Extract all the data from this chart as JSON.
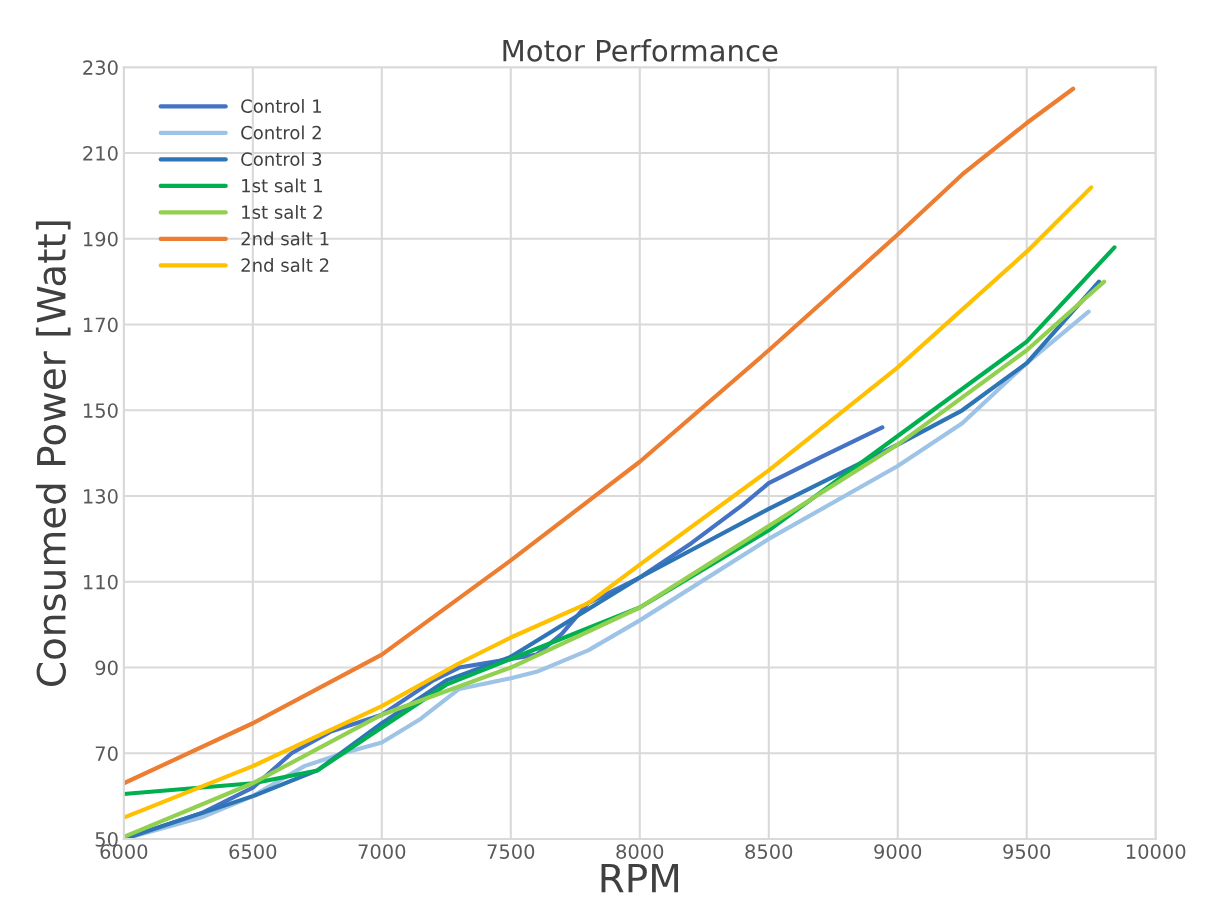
{
  "chart_data": {
    "type": "line",
    "title": "Motor Performance",
    "xlabel": "RPM",
    "ylabel": "Consumed Power [Watt]",
    "xlim": [
      6000,
      10000
    ],
    "xticks": [
      6000,
      6500,
      7000,
      7500,
      8000,
      8500,
      9000,
      9500,
      10000
    ],
    "ylim": [
      50,
      230
    ],
    "yticks": [
      50,
      70,
      90,
      110,
      130,
      150,
      170,
      190,
      210,
      230
    ],
    "grid": true,
    "legend": "top left",
    "marker": "none",
    "line_style": "solid",
    "series": [
      {
        "name": "Control 1",
        "color": "#4472c4",
        "x": [
          6000,
          6300,
          6500,
          6650,
          6800,
          7000,
          7200,
          7300,
          7450,
          7600,
          7700,
          7800,
          8000,
          8200,
          8400,
          8500,
          8700,
          8940
        ],
        "values": [
          50,
          56,
          62,
          70,
          75,
          79,
          87,
          90,
          91.5,
          93,
          98,
          105,
          111,
          119,
          128,
          133,
          139,
          146
        ]
      },
      {
        "name": "Control 2",
        "color": "#9dc3e6",
        "x": [
          6000,
          6300,
          6500,
          6700,
          6850,
          7000,
          7150,
          7300,
          7500,
          7600,
          7800,
          8000,
          8500,
          9000,
          9250,
          9500,
          9740
        ],
        "values": [
          50,
          55,
          60,
          67,
          70,
          72.5,
          78,
          85,
          87.5,
          89,
          94,
          101,
          120,
          137,
          147,
          161,
          173
        ]
      },
      {
        "name": "Control 3",
        "color": "#2e75b6",
        "x": [
          6000,
          6500,
          6750,
          7000,
          7250,
          7500,
          8000,
          8500,
          9000,
          9250,
          9500,
          9780
        ],
        "values": [
          50,
          60,
          66,
          77,
          87,
          92.5,
          111,
          127,
          142,
          150,
          161,
          180
        ]
      },
      {
        "name": "1st salt 1",
        "color": "#00b050",
        "x": [
          6000,
          6500,
          6750,
          7000,
          7250,
          7500,
          8000,
          8500,
          9000,
          9500,
          9840
        ],
        "values": [
          60.5,
          63,
          66,
          76,
          86,
          92,
          104,
          122,
          144,
          166,
          188
        ]
      },
      {
        "name": "1st salt 2",
        "color": "#92d050",
        "x": [
          6000,
          6500,
          7000,
          7500,
          8000,
          8500,
          9000,
          9500,
          9800
        ],
        "values": [
          50.5,
          63,
          79,
          90,
          104,
          123,
          142,
          164,
          180
        ]
      },
      {
        "name": "2nd salt 1",
        "color": "#ed7d31",
        "x": [
          6000,
          6500,
          7000,
          7500,
          8000,
          8500,
          9000,
          9250,
          9500,
          9680
        ],
        "values": [
          63,
          77,
          93,
          115,
          138,
          164,
          191,
          205,
          217,
          225
        ]
      },
      {
        "name": "2nd salt 2",
        "color": "#ffc000",
        "x": [
          6000,
          6500,
          7000,
          7300,
          7500,
          7800,
          8000,
          8500,
          9000,
          9500,
          9750
        ],
        "values": [
          55,
          67,
          81,
          91,
          97,
          105,
          114,
          136,
          160,
          187,
          202
        ]
      }
    ]
  }
}
